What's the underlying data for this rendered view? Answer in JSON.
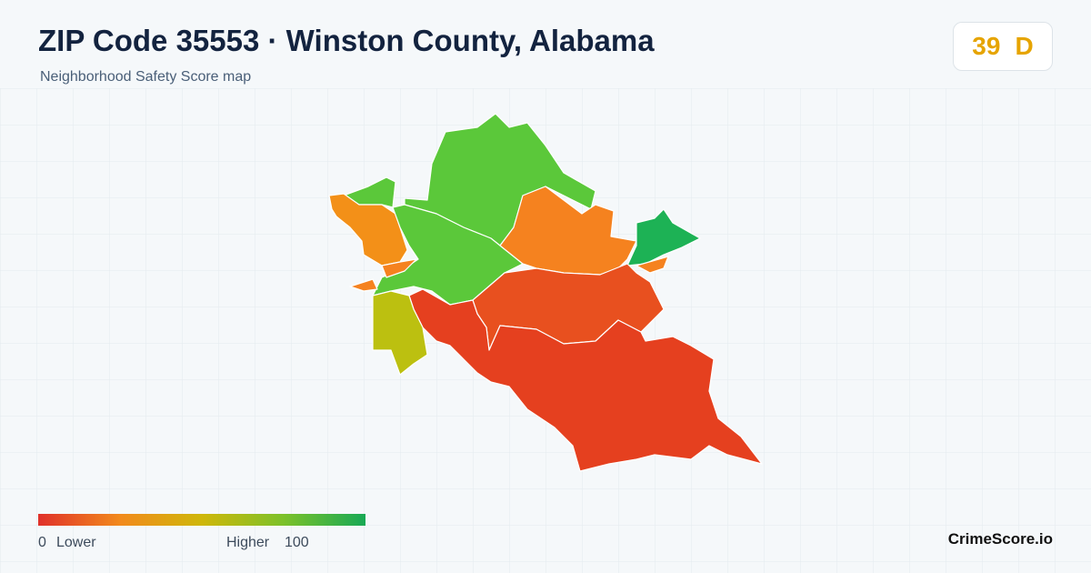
{
  "header": {
    "title": "ZIP Code 35553 · Winston County, Alabama",
    "subtitle": "Neighborhood Safety Score map"
  },
  "score": {
    "value": "39",
    "grade": "D"
  },
  "legend": {
    "min": "0",
    "min_label": "Lower",
    "max_label": "Higher",
    "max": "100"
  },
  "brand": "CrimeScore.io"
}
